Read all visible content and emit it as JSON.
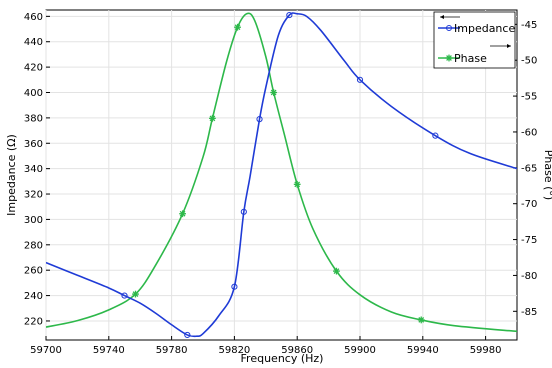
{
  "chart_data": {
    "type": "line",
    "xlabel": "Frequency (Hz)",
    "ylabel_left": "Impedance (Ω)",
    "ylabel_right": "Phase (°)",
    "xlim": [
      59700,
      60000
    ],
    "ylim_left": [
      205,
      465
    ],
    "ylim_right": [
      -89,
      -43
    ],
    "x_ticks": [
      59700,
      59740,
      59780,
      59820,
      59860,
      59900,
      59940,
      59980
    ],
    "y_left_ticks": [
      220,
      240,
      260,
      280,
      300,
      320,
      340,
      360,
      380,
      400,
      420,
      440,
      460
    ],
    "y_right_ticks": [
      -85,
      -80,
      -75,
      -70,
      -65,
      -60,
      -55,
      -50,
      -45
    ],
    "grid": true,
    "legend_position": "top-right",
    "colors": {
      "impedance": "#1f3bd6",
      "phase": "#2db84a"
    },
    "series": [
      {
        "name": "Impedance",
        "axis": "left",
        "marker": "circle",
        "x": [
          59700,
          59720,
          59740,
          59750,
          59760,
          59770,
          59780,
          59790,
          59796,
          59800,
          59810,
          59820,
          59826,
          59830,
          59836,
          59840,
          59848,
          59855,
          59860,
          59866,
          59875,
          59890,
          59900,
          59920,
          59948,
          59970,
          60000
        ],
        "y": [
          266,
          256,
          246,
          240,
          234,
          226,
          217,
          209,
          208,
          210,
          224,
          247,
          306,
          334,
          379,
          404,
          445,
          461,
          462,
          460,
          449,
          425,
          410,
          389,
          366,
          352,
          340
        ]
      },
      {
        "name": "Phase",
        "axis": "right",
        "marker": "star",
        "x": [
          59700,
          59720,
          59740,
          59757,
          59770,
          59787,
          59800,
          59806,
          59815,
          59822,
          59828,
          59833,
          59840,
          59845,
          59852,
          59860,
          59870,
          59885,
          59900,
          59920,
          59939,
          59960,
          60000
        ],
        "y": [
          -87.2,
          -86.3,
          -84.8,
          -82.6,
          -78.5,
          -71.4,
          -63.5,
          -58.1,
          -50.2,
          -45.4,
          -43.5,
          -44.5,
          -49.5,
          -54.5,
          -60.5,
          -67.3,
          -73.5,
          -79.4,
          -82.7,
          -85.1,
          -86.2,
          -87.0,
          -87.8
        ]
      }
    ]
  }
}
